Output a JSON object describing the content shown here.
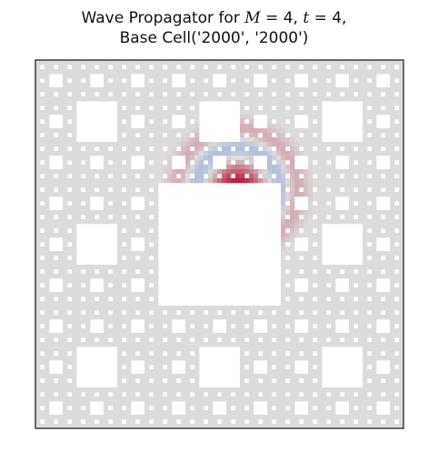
{
  "chart_data": {
    "type": "heatmap",
    "title_parts": [
      "Wave Propagator for ",
      "M",
      " = 4, ",
      "t",
      " = 4,"
    ],
    "subtitle": "Base Cell('2000', '2000')",
    "M": 4,
    "t": 4,
    "base_cell": [
      "2000",
      "2000"
    ],
    "grid_size": 81,
    "grid": "on",
    "colormap": [
      "#3b6bd4",
      "#dcdcdc",
      "#b40426"
    ],
    "background_color": "#dcdcdc",
    "hole_color": "#ffffff",
    "spike_cell": [
      44,
      28
    ],
    "wave_front_radii": [
      4,
      13
    ],
    "wave_amplitudes": [
      1.0,
      -0.35,
      0.25
    ]
  }
}
